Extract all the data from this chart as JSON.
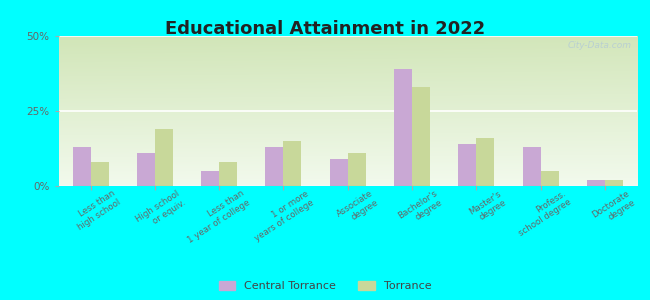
{
  "title": "Educational Attainment in 2022",
  "categories": [
    "Less than\nhigh school",
    "High school\nor equiv.",
    "Less than\n1 year of college",
    "1 or more\nyears of college",
    "Associate\ndegree",
    "Bachelor's\ndegree",
    "Master's\ndegree",
    "Profess.\nschool degree",
    "Doctorate\ndegree"
  ],
  "central_torrance": [
    13,
    11,
    5,
    13,
    9,
    39,
    14,
    13,
    2
  ],
  "torrance": [
    8,
    19,
    8,
    15,
    11,
    33,
    16,
    5,
    2
  ],
  "color_central": "#c9a8d4",
  "color_torrance": "#c8d89a",
  "background_outer": "#00ffff",
  "ylim": [
    0,
    50
  ],
  "yticks": [
    0,
    25,
    50
  ],
  "ytick_labels": [
    "0%",
    "25%",
    "50%"
  ],
  "legend_labels": [
    "Central Torrance",
    "Torrance"
  ],
  "bar_width": 0.28,
  "watermark": "City-Data.com",
  "grad_color_top_left": "#c8ddb0",
  "grad_color_top_right": "#e8f0d8",
  "grad_color_bottom": "#f0f5e8"
}
